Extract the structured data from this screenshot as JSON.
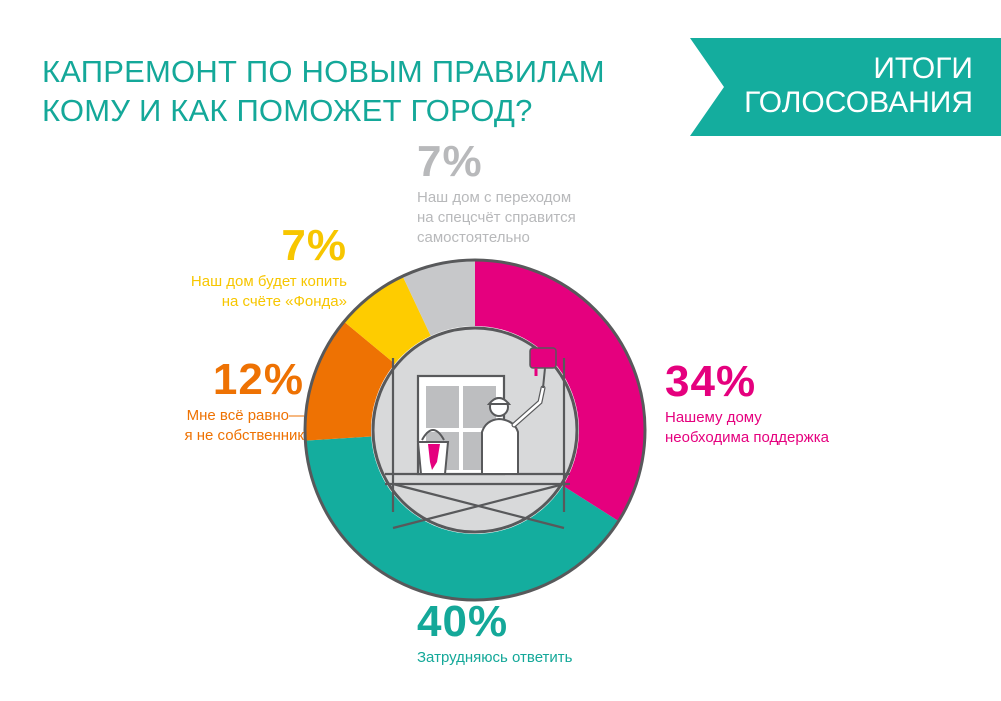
{
  "header": {
    "title_line1": "КАПРЕМОНТ ПО НОВЫМ ПРАВИЛАМ",
    "title_line2": "КОМУ И КАК ПОМОЖЕТ ГОРОД?"
  },
  "banner": {
    "line1": "ИТОГИ",
    "line2": "ГОЛОСОВАНИЯ"
  },
  "colors": {
    "accent": "#14a899",
    "pink": "#e5007e",
    "teal": "#14ad9e",
    "orange": "#ee7203",
    "yellow": "#fecc00",
    "gray": "#c7c8ca",
    "ring_outline": "#58595b"
  },
  "chart_data": {
    "type": "pie",
    "categories": [
      "Нашему дому необходима поддержка",
      "Затрудняюсь ответить",
      "Мне всё равно— я не собственник",
      "Наш дом будет копить на счёте «Фонда»",
      "Наш дом с переходом на спецсчёт справится самостоятельно"
    ],
    "values": [
      34,
      40,
      12,
      7,
      7
    ],
    "value_labels": [
      "34%",
      "40%",
      "12%",
      "7%",
      "7%"
    ],
    "colors": [
      "#e5007e",
      "#14ad9e",
      "#ee7203",
      "#fecc00",
      "#c7c8ca"
    ],
    "start": "12 o'clock",
    "direction": "clockwise",
    "style": "donut"
  },
  "labels": {
    "gray": {
      "pct": "7%",
      "line1": "Наш дом с переходом",
      "line2": "на спецсчёт справится",
      "line3": "самостоятельно"
    },
    "yellow": {
      "pct": "7%",
      "line1": "Наш дом будет копить",
      "line2": "на счёте «Фонда»"
    },
    "orange": {
      "pct": "12%",
      "line1": "Мне всё равно—",
      "line2": "я не собственник"
    },
    "pink": {
      "pct": "34%",
      "line1": "Нашему дому",
      "line2": "необходима поддержка"
    },
    "teal": {
      "pct": "40%",
      "line1": "Затрудняюсь ответить"
    }
  },
  "illustration": {
    "icon": "painter-on-scaffolding-icon"
  }
}
